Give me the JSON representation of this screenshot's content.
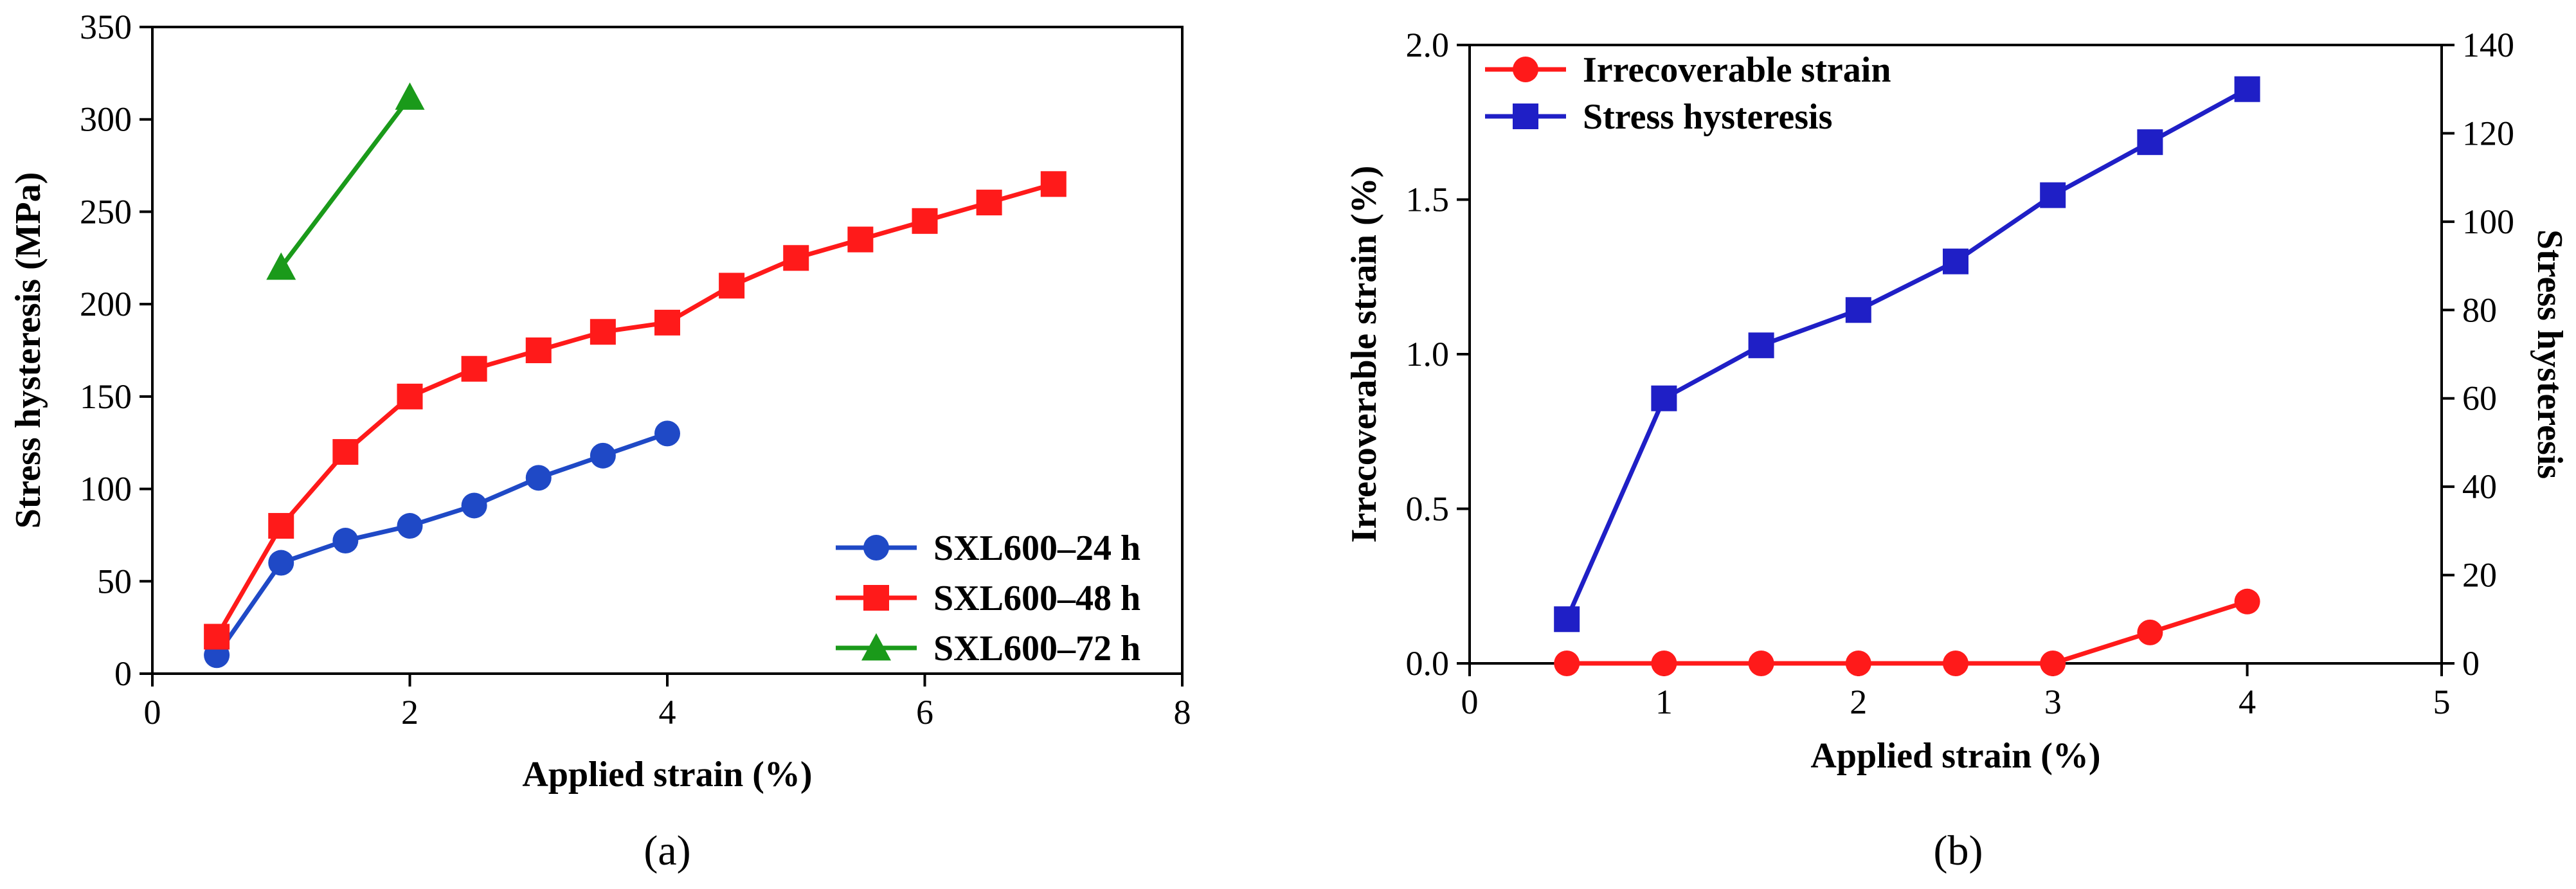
{
  "chart_data": [
    {
      "type": "line",
      "xlabel": "Applied strain (%)",
      "ylabel": "Stress hysteresis (MPa)",
      "xlim": [
        0,
        8
      ],
      "ylim": [
        0,
        350
      ],
      "xticks": [
        0,
        2,
        4,
        6,
        8
      ],
      "yticks": [
        0,
        50,
        100,
        150,
        200,
        250,
        300,
        350
      ],
      "grid": false,
      "legend_position": "bottom-right",
      "series": [
        {
          "name": "SXL600–24 h",
          "color": "#1f49c6",
          "marker": "circle",
          "x": [
            0.5,
            1.0,
            1.5,
            2.0,
            2.5,
            3.0,
            3.5,
            4.0
          ],
          "y": [
            10,
            60,
            72,
            80,
            91,
            106,
            118,
            130
          ]
        },
        {
          "name": "SXL600–48 h",
          "color": "#ff1a1a",
          "marker": "square",
          "x": [
            0.5,
            1.0,
            1.5,
            2.0,
            2.5,
            3.0,
            3.5,
            4.0,
            4.5,
            5.0,
            5.5,
            6.0,
            6.5,
            7.0
          ],
          "y": [
            20,
            80,
            120,
            150,
            165,
            175,
            185,
            190,
            210,
            225,
            235,
            245,
            255,
            265
          ]
        },
        {
          "name": "SXL600–72 h",
          "color": "#1a9a1a",
          "marker": "triangle",
          "x": [
            1.0,
            2.0
          ],
          "y": [
            220,
            312
          ]
        }
      ],
      "caption": "(a)"
    },
    {
      "type": "line",
      "xlabel": "Applied strain (%)",
      "ylabel": "Irrecoverable strain (%)",
      "y2label": "Stress hysteresis",
      "xlim": [
        0,
        5
      ],
      "ylim": [
        0,
        2.0
      ],
      "y2lim": [
        0,
        140
      ],
      "xticks": [
        0,
        1,
        2,
        3,
        4,
        5
      ],
      "yticks": [
        "0.0",
        "0.5",
        "1.0",
        "1.5",
        "2.0"
      ],
      "y2ticks": [
        0,
        20,
        40,
        60,
        80,
        100,
        120,
        140
      ],
      "grid": false,
      "legend_position": "top-left",
      "series": [
        {
          "name": "Irrecoverable strain",
          "color": "#ff1a1a",
          "marker": "circle",
          "axis": "left",
          "x": [
            0.5,
            1.0,
            1.5,
            2.0,
            2.5,
            3.0,
            3.5,
            4.0
          ],
          "y": [
            0,
            0,
            0,
            0,
            0,
            0,
            0.1,
            0.2
          ]
        },
        {
          "name": "Stress hysteresis",
          "color": "#1f1fc6",
          "marker": "square",
          "axis": "right",
          "x": [
            0.5,
            1.0,
            1.5,
            2.0,
            2.5,
            3.0,
            3.5,
            4.0
          ],
          "y": [
            10,
            60,
            72,
            80,
            91,
            106,
            118,
            130
          ]
        }
      ],
      "caption": "(b)"
    }
  ]
}
